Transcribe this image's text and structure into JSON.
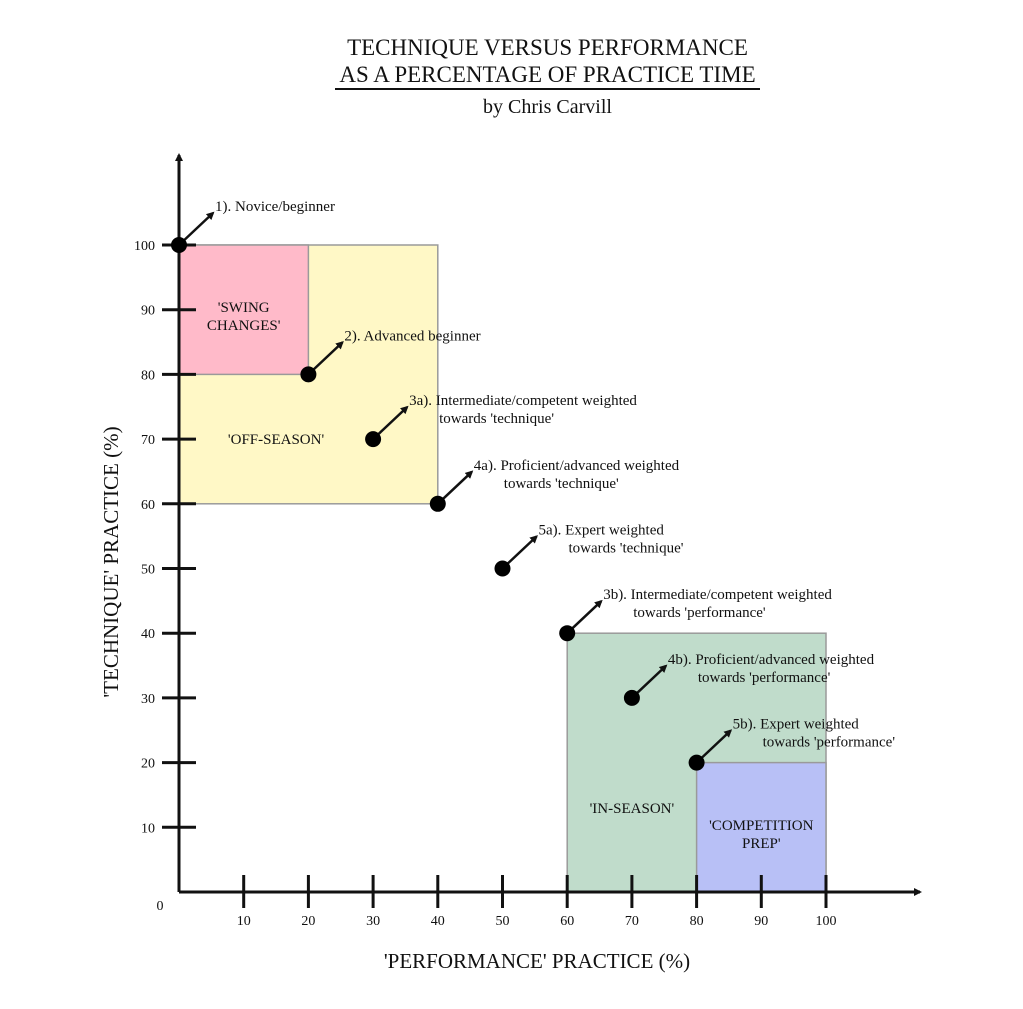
{
  "chart_data": {
    "type": "scatter",
    "title": [
      "TECHNIQUE VERSUS PERFORMANCE",
      "AS A PERCENTAGE OF PRACTICE TIME"
    ],
    "subtitle": "by Chris Carvill",
    "xlabel": "'PERFORMANCE' PRACTICE (%)",
    "ylabel": "'TECHNIQUE' PRACTICE (%)",
    "xlim": [
      0,
      100
    ],
    "ylim": [
      0,
      100
    ],
    "origin_label": "0",
    "x_ticks": [
      10,
      20,
      30,
      40,
      50,
      60,
      70,
      80,
      90,
      100
    ],
    "y_ticks": [
      10,
      20,
      30,
      40,
      50,
      60,
      70,
      80,
      90,
      100
    ],
    "grid": false,
    "regions": [
      {
        "label": [
          "'OFF-SEASON'"
        ],
        "x": [
          0,
          40
        ],
        "y": [
          60,
          100
        ],
        "color": "#fff8c6",
        "label_at": [
          15,
          70
        ]
      },
      {
        "label": [
          "'SWING",
          "CHANGES'"
        ],
        "x": [
          0,
          20
        ],
        "y": [
          80,
          100
        ],
        "color": "#ffbac9",
        "label_at": [
          10,
          89
        ]
      },
      {
        "label": [
          "'IN-SEASON'"
        ],
        "x": [
          60,
          100
        ],
        "y": [
          0,
          40
        ],
        "color": "#c0dccb",
        "label_at": [
          70,
          13
        ]
      },
      {
        "label": [
          "'COMPETITION",
          "PREP'"
        ],
        "x": [
          80,
          100
        ],
        "y": [
          0,
          20
        ],
        "color": "#b8c0f6",
        "label_at": [
          90,
          9
        ]
      }
    ],
    "points": [
      {
        "x": 0,
        "y": 100,
        "label": [
          "1). Novice/beginner"
        ]
      },
      {
        "x": 20,
        "y": 80,
        "label": [
          "2). Advanced beginner"
        ]
      },
      {
        "x": 30,
        "y": 70,
        "label": [
          "3a). Intermediate/competent weighted",
          "towards 'technique'"
        ]
      },
      {
        "x": 40,
        "y": 60,
        "label": [
          "4a). Proficient/advanced weighted",
          "towards 'technique'"
        ]
      },
      {
        "x": 50,
        "y": 50,
        "label": [
          "5a). Expert weighted",
          "towards 'technique'"
        ]
      },
      {
        "x": 60,
        "y": 40,
        "label": [
          "3b). Intermediate/competent weighted",
          "towards 'performance'"
        ]
      },
      {
        "x": 70,
        "y": 30,
        "label": [
          "4b). Proficient/advanced weighted",
          "towards 'performance'"
        ]
      },
      {
        "x": 80,
        "y": 20,
        "label": [
          "5b). Expert weighted",
          "towards 'performance'"
        ]
      }
    ]
  }
}
